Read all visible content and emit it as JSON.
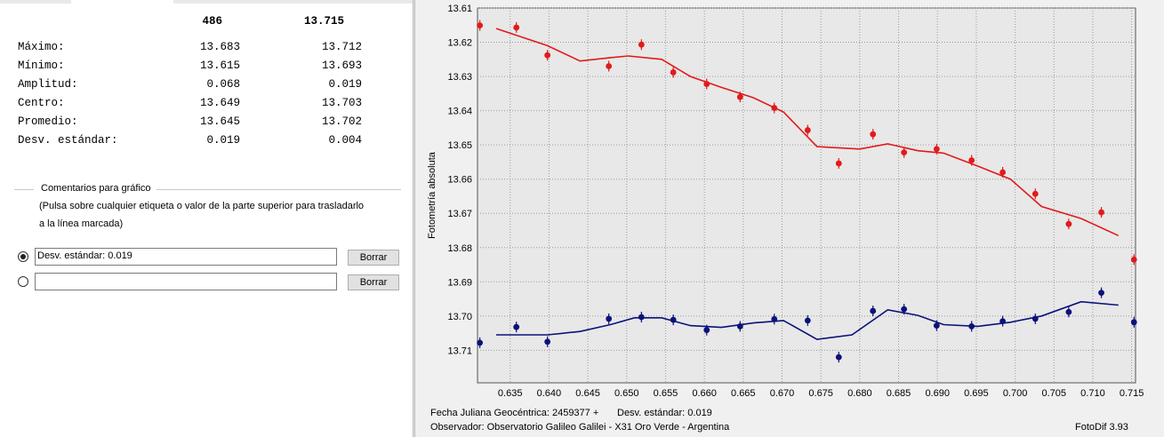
{
  "stats": {
    "headers": [
      "486",
      "13.715"
    ],
    "rows": [
      {
        "label": "Máximo:",
        "v1": "13.683",
        "v2": "13.712"
      },
      {
        "label": "Mínimo:",
        "v1": "13.615",
        "v2": "13.693"
      },
      {
        "label": "Amplitud:",
        "v1": "0.068",
        "v2": "0.019"
      },
      {
        "label": "Centro:",
        "v1": "13.649",
        "v2": "13.703"
      },
      {
        "label": "Promedio:",
        "v1": "13.645",
        "v2": "13.702"
      },
      {
        "label": "Desv. estándar:",
        "v1": "0.019",
        "v2": "0.004"
      }
    ]
  },
  "comments": {
    "group_title": "Comentarios para gráfico",
    "desc_line1": "(Pulsa sobre cualquier etiqueta o valor de la parte superior para trasladarlo",
    "desc_line2": "a la línea marcada)",
    "field1_value": "Desv. estándar: 0.019",
    "field2_value": "",
    "delete_label": "Borrar"
  },
  "footer": {
    "jd_label": "Fecha Juliana Geocéntrica: 2459377 +",
    "stddev_label": "Desv. estándar: 0.019",
    "observer": "Observador: Observatorio Galileo Galilei - X31 Oro Verde - Argentina",
    "app": "FotoDif 3.93"
  },
  "colors": {
    "series1": "#e21a1a",
    "series2": "#0a127a",
    "plot_bg": "#e8e8e8",
    "grid": "#9a9a9a"
  },
  "chart_data": {
    "type": "scatter",
    "ylabel": "Fotometría absoluta",
    "xlabel": "",
    "y_inverted": true,
    "xlim": [
      0.6308,
      0.7155
    ],
    "ylim": [
      13.61,
      13.7195
    ],
    "grid": true,
    "x_ticks": [
      "0.635",
      "0.640",
      "0.645",
      "0.650",
      "0.655",
      "0.660",
      "0.665",
      "0.670",
      "0.675",
      "0.680",
      "0.685",
      "0.690",
      "0.695",
      "0.700",
      "0.705",
      "0.710",
      "0.715"
    ],
    "y_ticks": [
      "13.61",
      "13.62",
      "13.63",
      "13.64",
      "13.65",
      "13.66",
      "13.67",
      "13.68",
      "13.69",
      "13.70",
      "13.71"
    ],
    "series": [
      {
        "points": [
          [
            0.6311,
            13.6151
          ],
          [
            0.6358,
            13.6157
          ],
          [
            0.6398,
            13.6238
          ],
          [
            0.6477,
            13.627
          ],
          [
            0.6519,
            13.6207
          ],
          [
            0.656,
            13.6288
          ],
          [
            0.6603,
            13.6322
          ],
          [
            0.6646,
            13.636
          ],
          [
            0.669,
            13.6392
          ],
          [
            0.6733,
            13.6457
          ],
          [
            0.6773,
            13.6554
          ],
          [
            0.6817,
            13.6469
          ],
          [
            0.6857,
            13.6522
          ],
          [
            0.6899,
            13.6512
          ],
          [
            0.6944,
            13.6545
          ],
          [
            0.6984,
            13.658
          ],
          [
            0.7026,
            13.6643
          ],
          [
            0.7069,
            13.6731
          ],
          [
            0.7111,
            13.6697
          ],
          [
            0.7153,
            13.6835
          ]
        ],
        "fit": [
          [
            0.6332,
            13.616
          ],
          [
            0.6398,
            13.621
          ],
          [
            0.644,
            13.6255
          ],
          [
            0.6479,
            13.6245
          ],
          [
            0.6502,
            13.624
          ],
          [
            0.6545,
            13.625
          ],
          [
            0.6582,
            13.63
          ],
          [
            0.6622,
            13.6332
          ],
          [
            0.6663,
            13.6362
          ],
          [
            0.6702,
            13.6404
          ],
          [
            0.6745,
            13.6505
          ],
          [
            0.68,
            13.6512
          ],
          [
            0.6836,
            13.6497
          ],
          [
            0.6875,
            13.6517
          ],
          [
            0.6908,
            13.6524
          ],
          [
            0.6952,
            13.6562
          ],
          [
            0.6994,
            13.66
          ],
          [
            0.7034,
            13.668
          ],
          [
            0.7085,
            13.6715
          ],
          [
            0.7133,
            13.6765
          ]
        ]
      },
      {
        "points": [
          [
            0.6311,
            13.7078
          ],
          [
            0.6358,
            13.7032
          ],
          [
            0.6398,
            13.7075
          ],
          [
            0.6477,
            13.7008
          ],
          [
            0.6519,
            13.7003
          ],
          [
            0.656,
            13.7011
          ],
          [
            0.6603,
            13.7041
          ],
          [
            0.6646,
            13.703
          ],
          [
            0.669,
            13.7009
          ],
          [
            0.6733,
            13.7013
          ],
          [
            0.6773,
            13.712
          ],
          [
            0.6817,
            13.6985
          ],
          [
            0.6857,
            13.698
          ],
          [
            0.6899,
            13.7028
          ],
          [
            0.6944,
            13.703
          ],
          [
            0.6984,
            13.7015
          ],
          [
            0.7026,
            13.7008
          ],
          [
            0.7069,
            13.6988
          ],
          [
            0.7111,
            13.6932
          ],
          [
            0.7153,
            13.7018
          ]
        ],
        "fit": [
          [
            0.6332,
            13.7055
          ],
          [
            0.6398,
            13.7055
          ],
          [
            0.644,
            13.7045
          ],
          [
            0.6479,
            13.7025
          ],
          [
            0.651,
            13.7005
          ],
          [
            0.6545,
            13.7005
          ],
          [
            0.6582,
            13.7028
          ],
          [
            0.6622,
            13.7033
          ],
          [
            0.6663,
            13.702
          ],
          [
            0.6702,
            13.7013
          ],
          [
            0.6745,
            13.7068
          ],
          [
            0.679,
            13.7055
          ],
          [
            0.6836,
            13.6982
          ],
          [
            0.6875,
            13.6998
          ],
          [
            0.6908,
            13.7025
          ],
          [
            0.6952,
            13.703
          ],
          [
            0.6994,
            13.7018
          ],
          [
            0.7034,
            13.7
          ],
          [
            0.7085,
            13.6958
          ],
          [
            0.7133,
            13.6968
          ]
        ]
      }
    ]
  }
}
